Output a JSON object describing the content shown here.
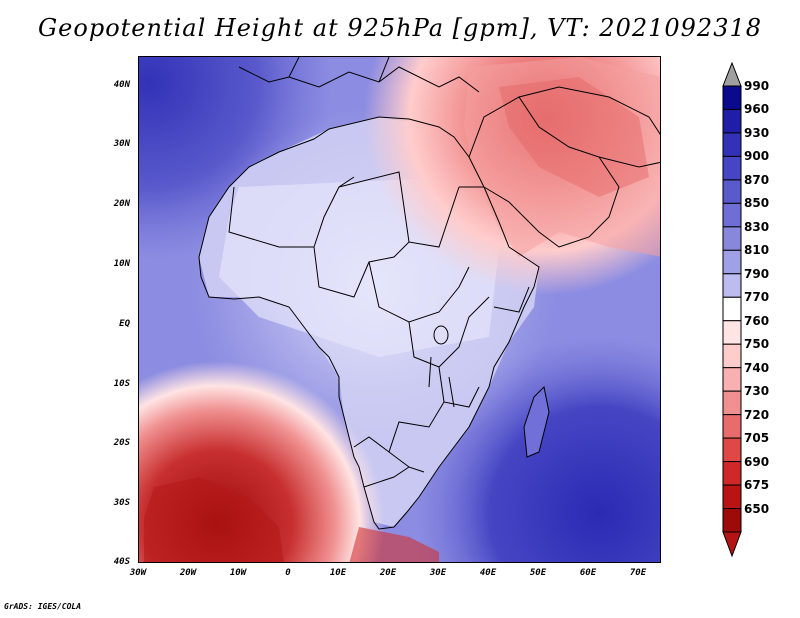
{
  "title": "Geopotential Height at 925hPa [gpm], VT: 2021092318",
  "credit": "GrADS: IGES/COLA",
  "y_ticks": [
    "40N",
    "30N",
    "20N",
    "10N",
    "EQ",
    "10S",
    "20S",
    "30S",
    "40S"
  ],
  "x_ticks": [
    "30W",
    "20W",
    "10W",
    "0",
    "10E",
    "20E",
    "30E",
    "40E",
    "50E",
    "60E",
    "70E"
  ],
  "legend": {
    "labels": [
      "990",
      "960",
      "930",
      "900",
      "870",
      "850",
      "830",
      "810",
      "790",
      "770",
      "760",
      "750",
      "740",
      "730",
      "720",
      "705",
      "690",
      "675",
      "650"
    ],
    "colors": [
      "#0a0a8c",
      "#1e1ea8",
      "#3232b8",
      "#4646c4",
      "#5a5acc",
      "#6e6ed6",
      "#8787de",
      "#a0a0e6",
      "#bcbcf0",
      "#ffffff",
      "#ffe4e4",
      "#ffcccc",
      "#f8b0b0",
      "#f09090",
      "#e86c6c",
      "#e04848",
      "#d02828",
      "#b81414",
      "#9c0a0a"
    ],
    "over_color": "#a0a0a0",
    "under_color": "#b41414"
  },
  "colors": {
    "ocean_deep": "#4a4ac8",
    "ocean_mid": "#7c7cdc",
    "land_light": "#d8d8f8",
    "high_red": "#b82020"
  }
}
